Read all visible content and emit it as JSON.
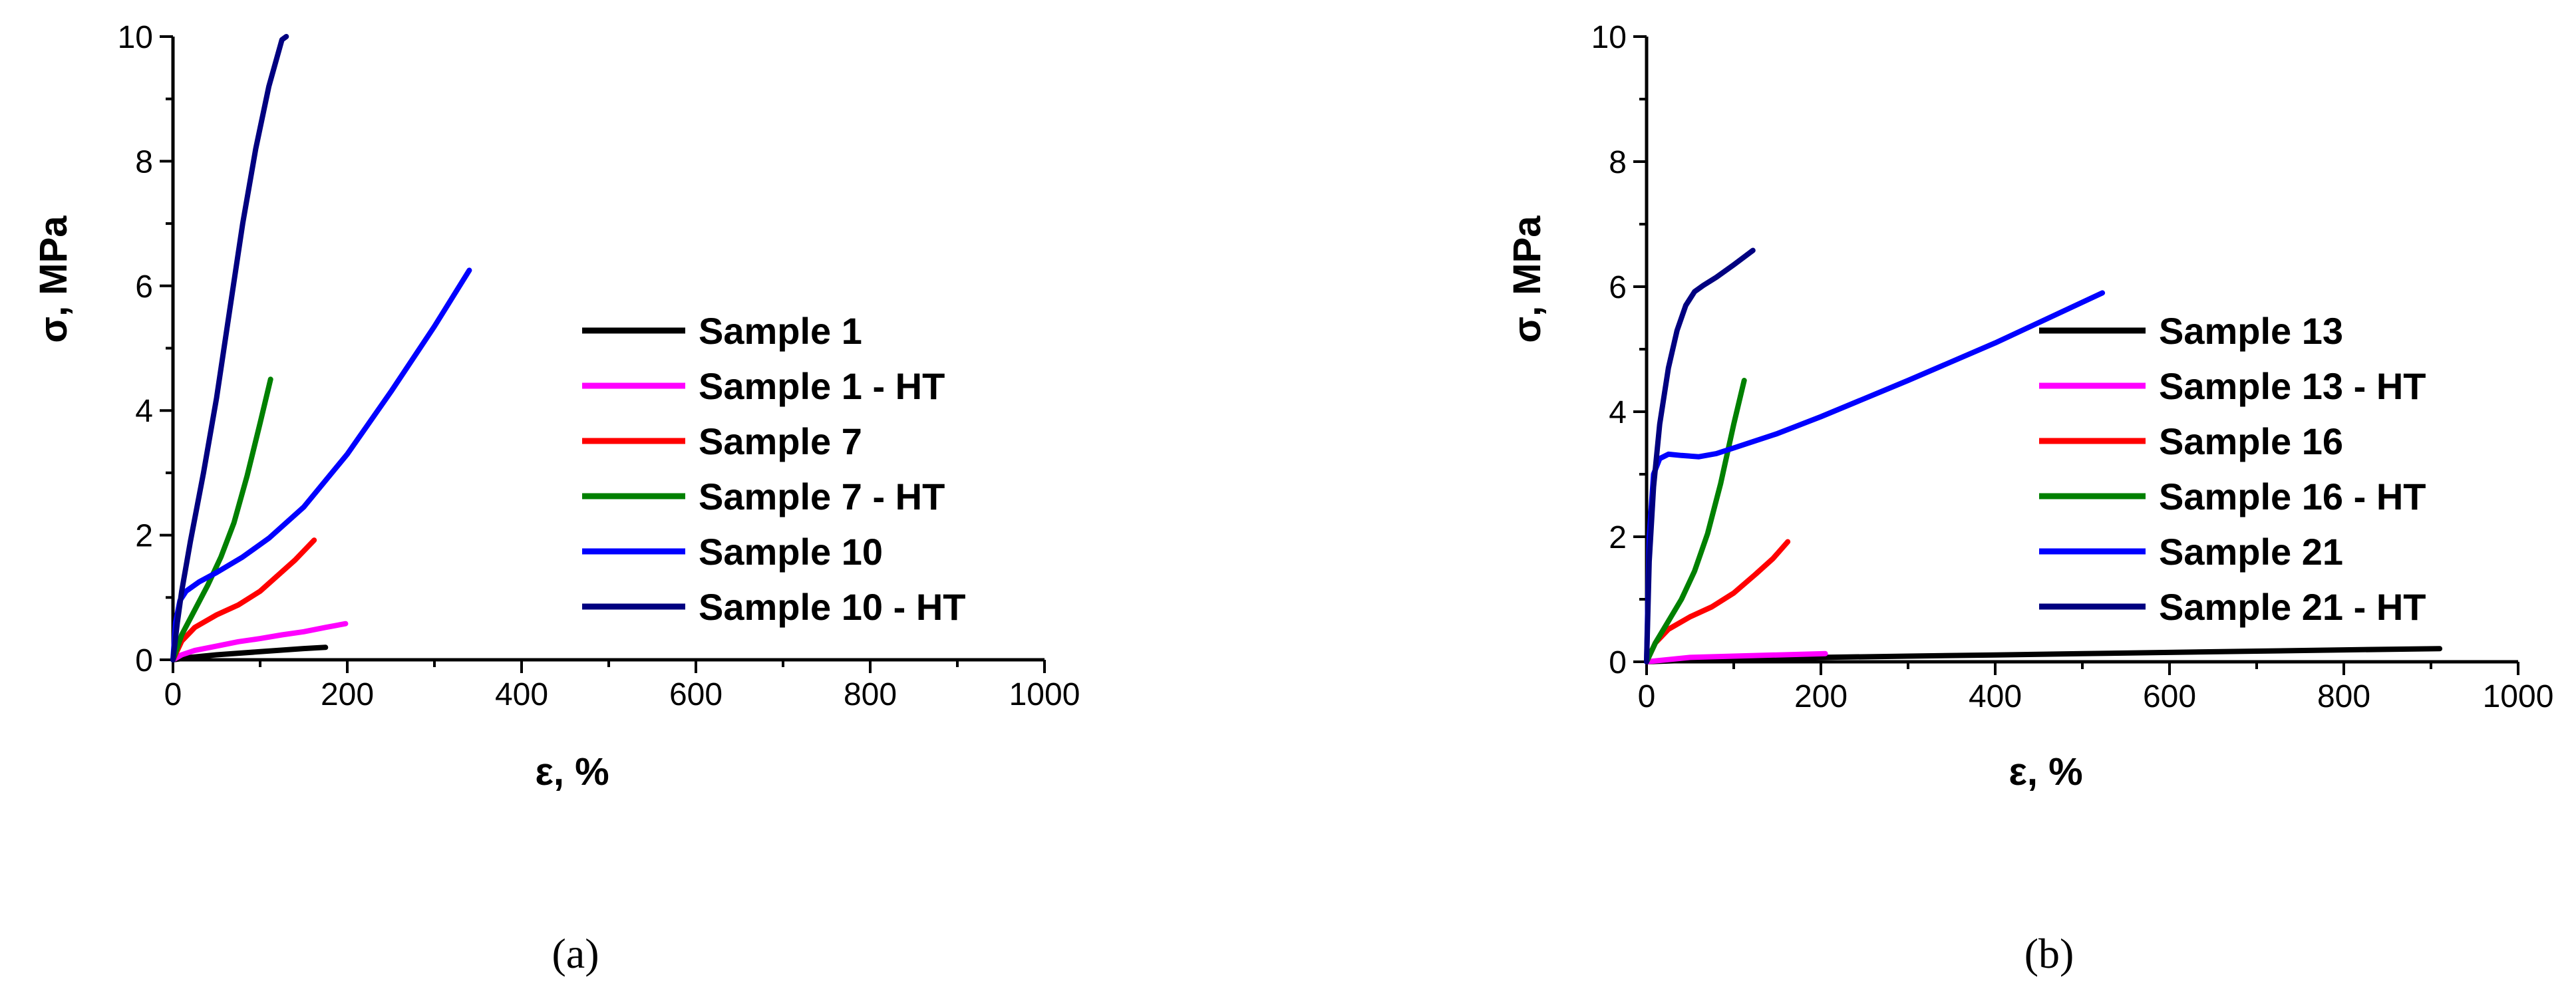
{
  "chart_data": [
    {
      "type": "line",
      "panel_label": "(a)",
      "xlabel": "ε, %",
      "ylabel": "σ, MPa",
      "xlim": [
        0,
        1000
      ],
      "ylim": [
        0,
        10
      ],
      "xticks": [
        0,
        200,
        400,
        600,
        800,
        1000
      ],
      "yticks": [
        0,
        2,
        4,
        6,
        8,
        10
      ],
      "legend_position": "middle-right",
      "series": [
        {
          "name": "Sample 1",
          "color": "#000000",
          "x": [
            0,
            20,
            50,
            100,
            150,
            175
          ],
          "y": [
            0,
            0.04,
            0.08,
            0.13,
            0.18,
            0.2
          ]
        },
        {
          "name": "Sample 1 - HT",
          "color": "#ff00ff",
          "x": [
            0,
            10,
            25,
            50,
            75,
            100,
            125,
            150,
            175,
            198
          ],
          "y": [
            0,
            0.08,
            0.15,
            0.22,
            0.29,
            0.34,
            0.4,
            0.45,
            0.52,
            0.58
          ]
        },
        {
          "name": "Sample 7",
          "color": "#ff0000",
          "x": [
            0,
            10,
            25,
            50,
            75,
            100,
            120,
            140,
            162
          ],
          "y": [
            0,
            0.3,
            0.52,
            0.72,
            0.88,
            1.1,
            1.35,
            1.6,
            1.92
          ]
        },
        {
          "name": "Sample 7 - HT",
          "color": "#008000",
          "x": [
            0,
            10,
            25,
            40,
            55,
            70,
            85,
            100,
            112
          ],
          "y": [
            0,
            0.4,
            0.8,
            1.2,
            1.65,
            2.2,
            2.95,
            3.8,
            4.5
          ]
        },
        {
          "name": "Sample 10",
          "color": "#0000ff",
          "x": [
            0,
            3,
            8,
            15,
            30,
            50,
            80,
            110,
            150,
            200,
            250,
            300,
            340
          ],
          "y": [
            0,
            0.6,
            0.95,
            1.1,
            1.25,
            1.4,
            1.65,
            1.95,
            2.45,
            3.3,
            4.3,
            5.35,
            6.25
          ]
        },
        {
          "name": "Sample 10 - HT",
          "color": "#000080",
          "x": [
            0,
            5,
            10,
            20,
            35,
            50,
            65,
            80,
            95,
            110,
            125,
            130
          ],
          "y": [
            0,
            0.6,
            1.1,
            1.9,
            3.0,
            4.2,
            5.6,
            7.0,
            8.2,
            9.2,
            9.95,
            10.0
          ]
        }
      ]
    },
    {
      "type": "line",
      "panel_label": "(b)",
      "xlabel": "ε, %",
      "ylabel": "σ, MPa",
      "xlim": [
        0,
        1000
      ],
      "ylim": [
        0,
        10
      ],
      "xticks": [
        0,
        200,
        400,
        600,
        800,
        1000
      ],
      "yticks": [
        0,
        2,
        4,
        6,
        8,
        10
      ],
      "legend_position": "middle-right",
      "series": [
        {
          "name": "Sample 13",
          "color": "#000000",
          "x": [
            0,
            100,
            200,
            300,
            400,
            500,
            600,
            700,
            800,
            910
          ],
          "y": [
            0,
            0.05,
            0.07,
            0.09,
            0.11,
            0.13,
            0.15,
            0.17,
            0.19,
            0.21
          ]
        },
        {
          "name": "Sample 13 - HT",
          "color": "#ff00ff",
          "x": [
            0,
            50,
            100,
            150,
            205
          ],
          "y": [
            0,
            0.07,
            0.09,
            0.11,
            0.13
          ]
        },
        {
          "name": "Sample 16",
          "color": "#ff0000",
          "x": [
            0,
            10,
            25,
            50,
            75,
            100,
            125,
            145,
            162
          ],
          "y": [
            0,
            0.3,
            0.52,
            0.72,
            0.88,
            1.1,
            1.4,
            1.65,
            1.92
          ]
        },
        {
          "name": "Sample 16 - HT",
          "color": "#008000",
          "x": [
            0,
            10,
            25,
            40,
            55,
            70,
            85,
            100,
            112
          ],
          "y": [
            0,
            0.3,
            0.65,
            1.0,
            1.45,
            2.05,
            2.85,
            3.8,
            4.5
          ]
        },
        {
          "name": "Sample 21",
          "color": "#0000ff",
          "x": [
            0,
            3,
            8,
            15,
            25,
            40,
            60,
            80,
            100,
            150,
            200,
            300,
            400,
            523
          ],
          "y": [
            0,
            2.0,
            3.0,
            3.25,
            3.32,
            3.3,
            3.28,
            3.33,
            3.42,
            3.65,
            3.92,
            4.5,
            5.1,
            5.9
          ]
        },
        {
          "name": "Sample 21 - HT",
          "color": "#000080",
          "x": [
            0,
            3,
            8,
            15,
            25,
            35,
            45,
            55,
            65,
            80,
            100,
            122
          ],
          "y": [
            0,
            1.6,
            2.8,
            3.8,
            4.7,
            5.3,
            5.7,
            5.92,
            6.02,
            6.15,
            6.35,
            6.58
          ]
        }
      ]
    }
  ]
}
